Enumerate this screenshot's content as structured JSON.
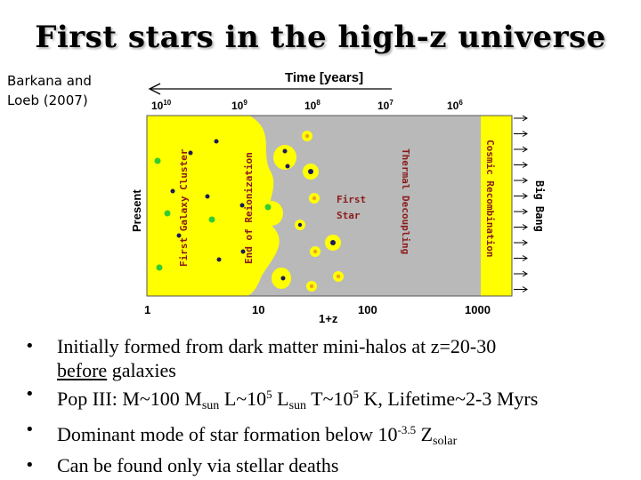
{
  "slide": {
    "title": "First stars in the high-z universe",
    "citation": [
      "Barkana and",
      "Loeb (2007)"
    ]
  },
  "diagram": {
    "time_axis_label": "Time [years]",
    "time_ticks": [
      {
        "base": "10",
        "exp": "10"
      },
      {
        "base": "10",
        "exp": "9"
      },
      {
        "base": "10",
        "exp": "8"
      },
      {
        "base": "10",
        "exp": "7"
      },
      {
        "base": "10",
        "exp": "6"
      }
    ],
    "z_ticks": [
      "1",
      "10",
      "100",
      "1000"
    ],
    "z_axis_label": "1+z",
    "left_label": "Present",
    "right_label": "Big Bang",
    "band_labels": {
      "first_galaxy_cluster": "First Galaxy Cluster",
      "end_of_reionization": "End of Reionization",
      "thermal_decoupling": "Thermal Decoupling",
      "cosmic_recombination": "Cosmic Recombination"
    },
    "first_star_label": [
      "First",
      "Star"
    ],
    "colors": {
      "yellow": "#ffff00",
      "gray": "#b9b9b9",
      "green": "#33cc33",
      "navy": "#1a1a5a",
      "orange": "#f0a020",
      "label_red": "#8b1a1a"
    }
  },
  "bullets": [
    {
      "text": "Initially formed from dark matter mini-halos at z=20-30",
      "underlined": "before",
      "tail": " galaxies"
    },
    {
      "a": "Pop III: M~100 M",
      "b": "sun",
      "c": " L~10",
      "d": "5",
      "e": " L",
      "f": "sun",
      "g": " T~10",
      "h": "5",
      "i": " K,  Lifetime~2-3 Myrs"
    },
    {
      "a": "Dominant mode of star formation below 10",
      "b": "-3.5",
      "c": " Z",
      "d": "solar"
    },
    {
      "text": "Can be found only via stellar deaths"
    }
  ],
  "bullet_symbol": "•"
}
